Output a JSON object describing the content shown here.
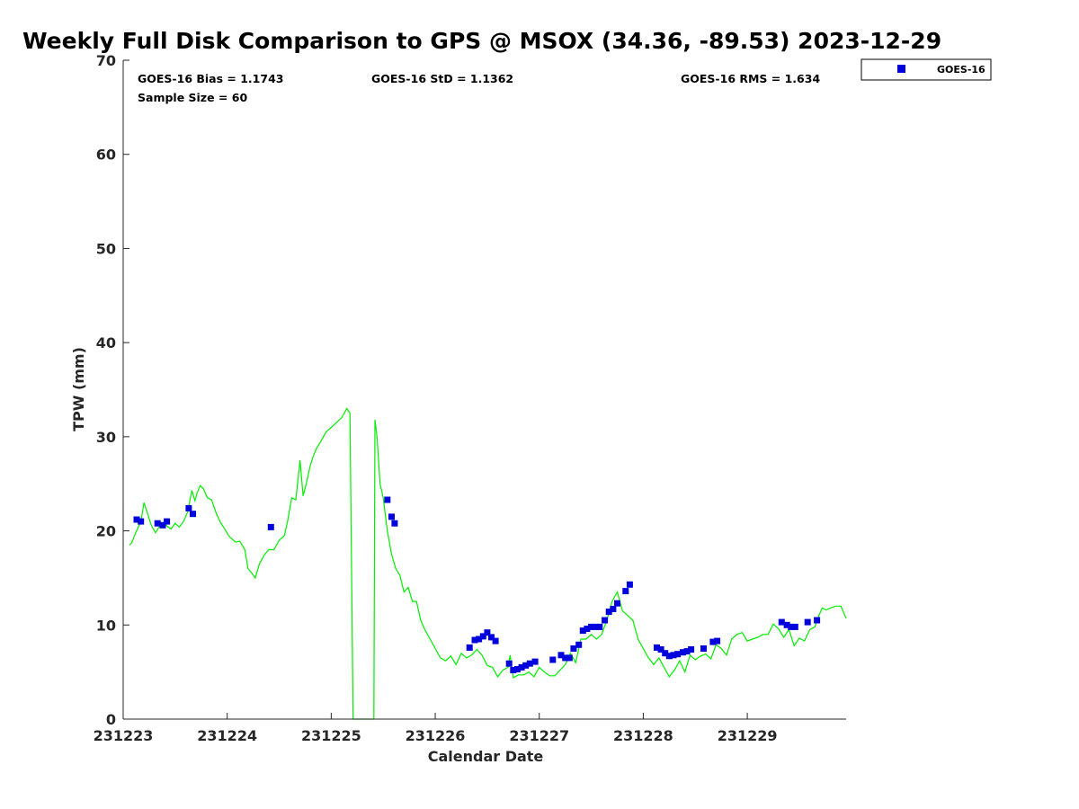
{
  "chart_data": {
    "type": "scatter",
    "title": "Weekly Full Disk Comparison to GPS @ MSOX (34.36, -89.53) 2023-12-29",
    "xlabel": "Calendar Date",
    "ylabel": "TPW (mm)",
    "xlim": [
      231223.0,
      231229.95
    ],
    "ylim": [
      0,
      70
    ],
    "grid": false,
    "legend_position": "top-right",
    "x_ticks": [
      {
        "value": 231223,
        "label": "231223"
      },
      {
        "value": 231224,
        "label": "231224"
      },
      {
        "value": 231225,
        "label": "231225"
      },
      {
        "value": 231226,
        "label": "231226"
      },
      {
        "value": 231227,
        "label": "231227"
      },
      {
        "value": 231228,
        "label": "231228"
      },
      {
        "value": 231229,
        "label": "231229"
      }
    ],
    "y_ticks": [
      {
        "value": 0,
        "label": "0"
      },
      {
        "value": 10,
        "label": "10"
      },
      {
        "value": 20,
        "label": "20"
      },
      {
        "value": 30,
        "label": "30"
      },
      {
        "value": 40,
        "label": "40"
      },
      {
        "value": 50,
        "label": "50"
      },
      {
        "value": 60,
        "label": "60"
      },
      {
        "value": 70,
        "label": "70"
      }
    ],
    "stats": {
      "bias": "GOES-16 Bias = 1.1743",
      "std": "GOES-16 StD = 1.1362",
      "rms": "GOES-16 RMS = 1.634",
      "sample": "Sample Size = 60"
    },
    "colors": {
      "goes": "#0000dd",
      "gps": "#00ee00"
    },
    "series": [
      {
        "name": "GOES-16",
        "kind": "scatter",
        "x": [
          231223.13,
          231223.17,
          231223.33,
          231223.38,
          231223.42,
          231223.63,
          231223.67,
          231224.42,
          231225.54,
          231225.58,
          231225.61,
          231226.33,
          231226.38,
          231226.42,
          231226.46,
          231226.5,
          231226.54,
          231226.58,
          231226.71,
          231226.75,
          231226.79,
          231226.83,
          231226.87,
          231226.91,
          231226.96,
          231227.13,
          231227.21,
          231227.25,
          231227.29,
          231227.33,
          231227.38,
          231227.42,
          231227.46,
          231227.5,
          231227.54,
          231227.58,
          231227.63,
          231227.67,
          231227.71,
          231227.75,
          231227.83,
          231227.87,
          231228.13,
          231228.17,
          231228.21,
          231228.25,
          231228.29,
          231228.33,
          231228.38,
          231228.42,
          231228.46,
          231228.58,
          231228.67,
          231228.71,
          231229.33,
          231229.38,
          231229.42,
          231229.46,
          231229.58,
          231229.67
        ],
        "y": [
          21.2,
          21.0,
          20.8,
          20.6,
          21.0,
          22.4,
          21.8,
          20.4,
          23.3,
          21.5,
          20.8,
          7.6,
          8.4,
          8.5,
          8.8,
          9.2,
          8.7,
          8.3,
          5.9,
          5.2,
          5.3,
          5.5,
          5.7,
          5.9,
          6.1,
          6.3,
          6.8,
          6.5,
          6.5,
          7.5,
          7.9,
          9.4,
          9.6,
          9.8,
          9.8,
          9.8,
          10.5,
          11.4,
          11.7,
          12.3,
          13.6,
          14.3,
          7.6,
          7.4,
          7.0,
          6.7,
          6.8,
          6.9,
          7.1,
          7.2,
          7.4,
          7.5,
          8.2,
          8.3,
          10.3,
          10.0,
          9.8,
          9.8,
          10.3,
          10.5
        ]
      },
      {
        "kind": "line",
        "x": [
          231223.06,
          231223.08,
          231223.12,
          231223.17,
          231223.2,
          231223.23,
          231223.27,
          231223.31,
          231223.35,
          231223.39,
          231223.42,
          231223.46,
          231223.5,
          231223.54,
          231223.58,
          231223.62,
          231223.66,
          231223.69,
          231223.71,
          231223.74,
          231223.77,
          231223.81,
          231223.85,
          231223.89,
          231223.93,
          231223.97,
          231224.02,
          231224.08,
          231224.12,
          231224.17,
          231224.2,
          231224.23,
          231224.27,
          231224.31,
          231224.36,
          231224.4,
          231224.45,
          231224.5,
          231224.55,
          231224.58,
          231224.62,
          231224.66,
          231224.7,
          231224.73,
          231224.76,
          231224.8,
          231224.83,
          231224.86,
          231224.9,
          231224.95,
          231225.0,
          231225.05,
          231225.1,
          231225.15,
          231225.18,
          231225.21,
          231225.23,
          231225.24,
          231225.24,
          231225.41,
          231225.41,
          231225.42,
          231225.44,
          231225.47,
          231225.5,
          231225.54,
          231225.58,
          231225.62,
          231225.66,
          231225.7,
          231225.74,
          231225.78,
          231225.82,
          231225.86,
          231225.9,
          231225.95,
          231226.0,
          231226.05,
          231226.1,
          231226.15,
          231226.2,
          231226.25,
          231226.3,
          231226.35,
          231226.4,
          231226.45,
          231226.5,
          231226.55,
          231226.6,
          231226.65,
          231226.7,
          231226.72,
          231226.75,
          231226.8,
          231226.85,
          231226.9,
          231226.95,
          231227.0,
          231227.05,
          231227.1,
          231227.15,
          231227.2,
          231227.25,
          231227.3,
          231227.35,
          231227.4,
          231227.45,
          231227.5,
          231227.55,
          231227.6,
          231227.65,
          231227.7,
          231227.75,
          231227.8,
          231227.85,
          231227.9,
          231227.95,
          231228.0,
          231228.05,
          231228.1,
          231228.15,
          231228.2,
          231228.25,
          231228.3,
          231228.35,
          231228.4,
          231228.45,
          231228.5,
          231228.55,
          231228.6,
          231228.65,
          231228.7,
          231228.75,
          231228.8,
          231228.85,
          231228.9,
          231228.95,
          231229.0,
          231229.05,
          231229.1,
          231229.15,
          231229.2,
          231229.25,
          231229.3,
          231229.35,
          231229.4,
          231229.45,
          231229.5,
          231229.55,
          231229.6,
          231229.65,
          231229.68,
          231229.72,
          231229.76,
          231229.8,
          231229.85,
          231229.9,
          231229.95
        ],
        "y": [
          18.5,
          18.7,
          19.8,
          21.0,
          23.0,
          22.0,
          20.6,
          19.8,
          20.5,
          20.9,
          20.5,
          20.2,
          20.8,
          20.4,
          21.0,
          22.0,
          24.3,
          23.2,
          24.0,
          24.8,
          24.5,
          23.5,
          23.3,
          22.0,
          21.0,
          20.3,
          19.4,
          18.8,
          18.9,
          18.0,
          16.0,
          15.6,
          15.0,
          16.5,
          17.5,
          18.0,
          18.0,
          19.0,
          19.5,
          21.0,
          23.5,
          23.3,
          27.5,
          23.7,
          25.0,
          27.0,
          28.0,
          28.8,
          29.5,
          30.5,
          31.0,
          31.5,
          32.0,
          33.0,
          32.5,
          0,
          0,
          0,
          0,
          0,
          0,
          31.8,
          30.0,
          25.0,
          23.5,
          20.0,
          17.5,
          16.0,
          15.3,
          13.5,
          14.0,
          12.5,
          12.5,
          10.5,
          9.5,
          8.5,
          7.5,
          6.5,
          6.2,
          6.7,
          5.8,
          7.0,
          6.5,
          6.8,
          7.4,
          6.8,
          5.7,
          5.5,
          4.5,
          5.2,
          5.5,
          6.8,
          4.4,
          4.7,
          4.7,
          5.0,
          4.5,
          5.5,
          5.0,
          4.6,
          4.6,
          5.2,
          5.8,
          7.0,
          6.0,
          8.5,
          8.5,
          9.0,
          8.5,
          9.0,
          10.5,
          12.5,
          13.5,
          11.5,
          11.0,
          10.5,
          8.5,
          7.5,
          6.5,
          5.8,
          6.5,
          5.5,
          4.5,
          5.2,
          6.2,
          5.0,
          6.8,
          6.3,
          6.7,
          6.9,
          6.4,
          7.9,
          7.5,
          6.8,
          8.5,
          9.0,
          9.2,
          8.3,
          8.5,
          8.7,
          9.0,
          9.0,
          10.1,
          9.6,
          8.7,
          9.5,
          7.8,
          8.6,
          8.3,
          9.5,
          9.8,
          10.8,
          11.8,
          11.6,
          11.8,
          12.0,
          12.0,
          10.7
        ]
      }
    ]
  }
}
